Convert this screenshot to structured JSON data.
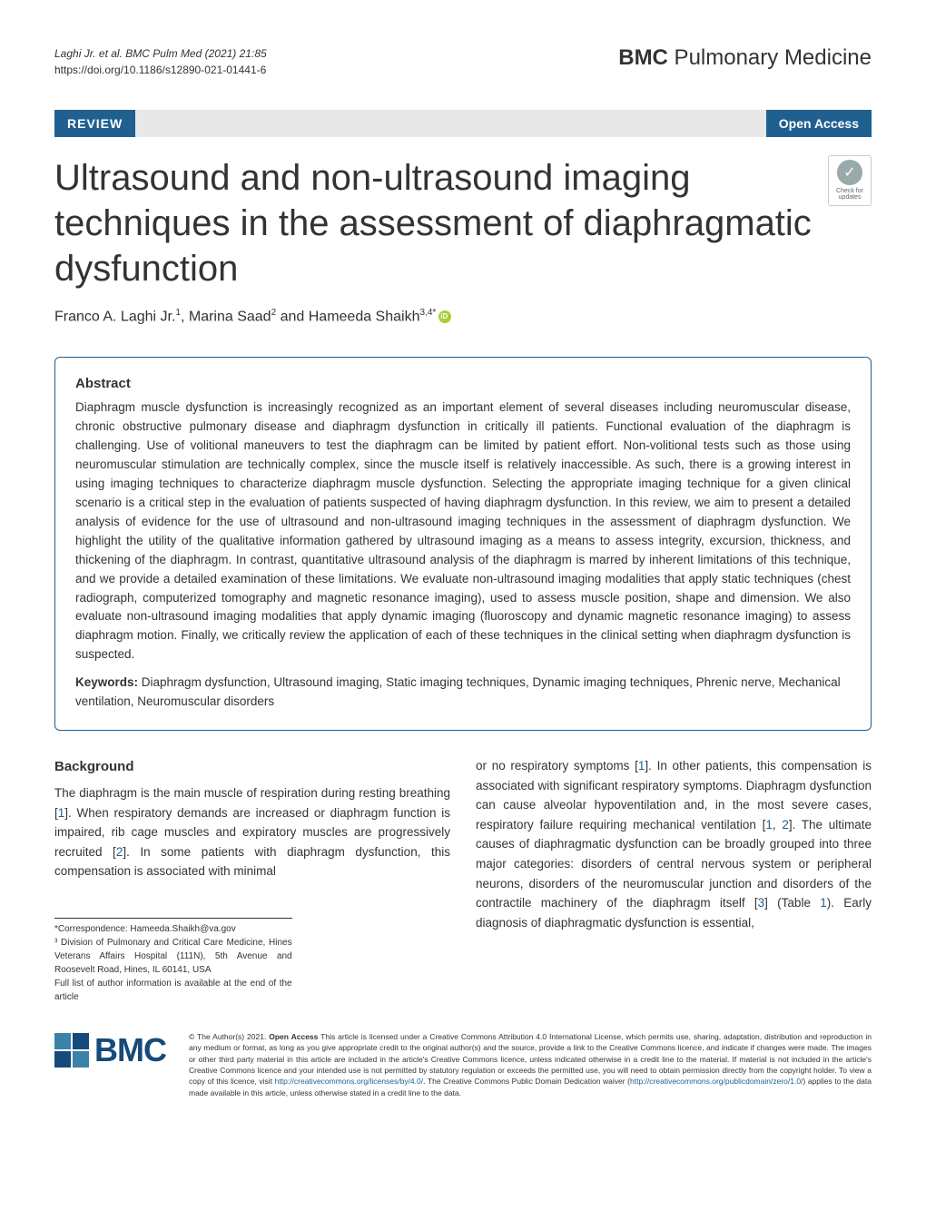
{
  "header": {
    "citation": "Laghi Jr. et al. BMC Pulm Med    (2021) 21:85",
    "doi": "https://doi.org/10.1186/s12890-021-01441-6",
    "journal": "BMC Pulmonary Medicine"
  },
  "banner": {
    "review_label": "REVIEW",
    "open_access_label": "Open Access"
  },
  "check_updates": {
    "line1": "Check for",
    "line2": "updates"
  },
  "title": "Ultrasound and non-ultrasound imaging techniques in the assessment of diaphragmatic dysfunction",
  "authors": {
    "a1_name": "Franco A. Laghi Jr.",
    "a1_sup": "1",
    "a2_name": "Marina Saad",
    "a2_sup": "2",
    "a3_name": "Hameeda Shaikh",
    "a3_sup": "3,4*",
    "and": " and "
  },
  "abstract": {
    "heading": "Abstract",
    "text": "Diaphragm muscle dysfunction is increasingly recognized as an important element of several diseases including neuromuscular disease, chronic obstructive pulmonary disease and diaphragm dysfunction in critically ill patients. Functional evaluation of the diaphragm is challenging. Use of volitional maneuvers to test the diaphragm can be limited by patient effort. Non-volitional tests such as those using neuromuscular stimulation are technically complex, since the muscle itself is relatively inaccessible. As such, there is a growing interest in using imaging techniques to characterize diaphragm muscle dysfunction. Selecting the appropriate imaging technique for a given clinical scenario is a critical step in the evaluation of patients suspected of having diaphragm dysfunction. In this review, we aim to present a detailed analysis of evidence for the use of ultrasound and non-ultrasound imaging techniques in the assessment of diaphragm dysfunction. We highlight the utility of the qualitative information gathered by ultrasound imaging as a means to assess integrity, excursion, thickness, and thickening of the diaphragm. In contrast, quantitative ultrasound analysis of the diaphragm is marred by inherent limitations of this technique, and we provide a detailed examination of these limitations. We evaluate non-ultrasound imaging modalities that apply static techniques (chest radiograph, computerized tomography and magnetic resonance imaging), used to assess muscle position, shape and dimension. We also evaluate non-ultrasound imaging modalities that apply dynamic imaging (fluoroscopy and dynamic magnetic resonance imaging) to assess diaphragm motion. Finally, we critically review the application of each of these techniques in the clinical setting when diaphragm dysfunction is suspected.",
    "keywords_label": "Keywords: ",
    "keywords_text": "Diaphragm dysfunction, Ultrasound imaging, Static imaging techniques, Dynamic imaging techniques, Phrenic nerve, Mechanical ventilation, Neuromuscular disorders"
  },
  "body": {
    "background_heading": "Background",
    "col1_p1_a": "The diaphragm is the main muscle of respiration during resting breathing [",
    "col1_ref1": "1",
    "col1_p1_b": "]. When respiratory demands are increased or diaphragm function is impaired, rib cage muscles and expiratory muscles are progressively recruited [",
    "col1_ref2": "2",
    "col1_p1_c": "]. In some patients with diaphragm dysfunction, this compensation is associated with minimal",
    "col2_p1_a": "or no respiratory symptoms [",
    "col2_ref1": "1",
    "col2_p1_b": "]. In other patients, this compensation is associated with significant respiratory symptoms. Diaphragm dysfunction can cause alveolar hypoventilation and, in the most severe cases, respiratory failure requiring mechanical ventilation [",
    "col2_ref2": "1",
    "col2_p1_c": ", ",
    "col2_ref3": "2",
    "col2_p1_d": "]. The ultimate causes of diaphragmatic dysfunction can be broadly grouped into three major categories: disorders of central nervous system or peripheral neurons, disorders of the neuromuscular junction and disorders of the contractile machinery of the diaphragm itself [",
    "col2_ref4": "3",
    "col2_p1_e": "] (Table ",
    "col2_ref5": "1",
    "col2_p1_f": "). Early diagnosis of diaphragmatic dysfunction is essential,"
  },
  "correspondence": {
    "email_label": "*Correspondence:  ",
    "email": "Hameeda.Shaikh@va.gov",
    "affiliation": "³ Division of Pulmonary and Critical Care Medicine, Hines Veterans Affairs Hospital (111N), 5th Avenue and Roosevelt Road, Hines, IL 60141, USA",
    "full_list": "Full list of author information is available at the end of the article"
  },
  "license": {
    "copyright": "© The Author(s) 2021. ",
    "open_access_bold": "Open Access",
    "text_a": " This article is licensed under a Creative Commons Attribution 4.0 International License, which permits use, sharing, adaptation, distribution and reproduction in any medium or format, as long as you give appropriate credit to the original author(s) and the source, provide a link to the Creative Commons licence, and indicate if changes were made. The images or other third party material in this article are included in the article's Creative Commons licence, unless indicated otherwise in a credit line to the material. If material is not included in the article's Creative Commons licence and your intended use is not permitted by statutory regulation or exceeds the permitted use, you will need to obtain permission directly from the copyright holder. To view a copy of this licence, visit ",
    "link1": "http://creativecommons.org/licenses/by/4.0/",
    "text_b": ". The Creative Commons Public Domain Dedication waiver (",
    "link2": "http://creativecommons.org/publicdomain/zero/1.0/",
    "text_c": ") applies to the data made available in this article, unless otherwise stated in a credit line to the data."
  },
  "bmc_logo": "BMC"
}
